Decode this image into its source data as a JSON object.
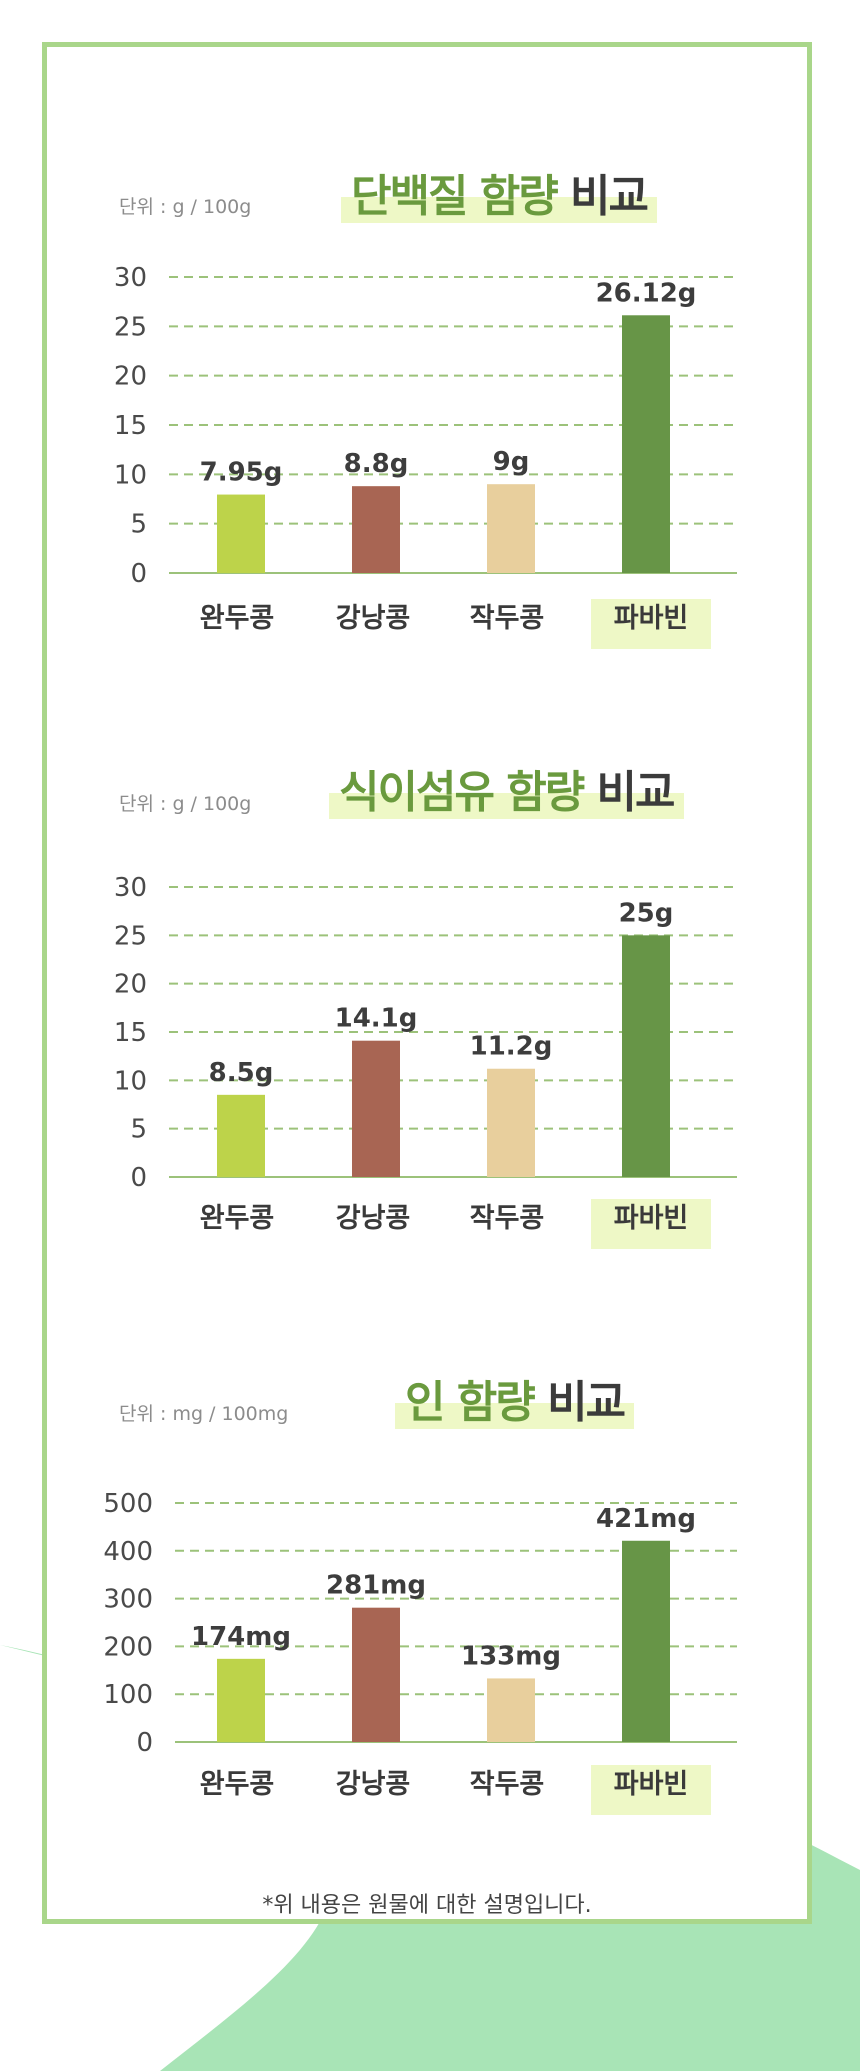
{
  "colors": {
    "border": "#a9d68a",
    "wave": "#a8e4b6",
    "title_green": "#6a9a3e",
    "title_dark": "#3b3b3b",
    "highlight": "#eef8c6",
    "grid": "#9cc27a",
    "bar_colors": [
      "#bdd34a",
      "#a86553",
      "#e8cf9d",
      "#679547"
    ]
  },
  "sections": [
    {
      "unit": "단위 : g / 100g",
      "title_green": "단백질 함량",
      "title_dark": "비교"
    },
    {
      "unit": "단위 : g / 100g",
      "title_green": "식이섬유 함량",
      "title_dark": "비교"
    },
    {
      "unit": "단위 : mg / 100mg",
      "title_green": "인 함량",
      "title_dark": "비교"
    }
  ],
  "chart_data": [
    {
      "type": "bar",
      "categories": [
        "완두콩",
        "강낭콩",
        "작두콩",
        "파바빈"
      ],
      "values": [
        7.95,
        8.8,
        9,
        26.12
      ],
      "value_labels": [
        "7.95g",
        "8.8g",
        "9g",
        "26.12g"
      ],
      "yticks": [
        "0",
        "5",
        "10",
        "15",
        "20",
        "25",
        "30"
      ],
      "ylim": [
        0,
        30
      ],
      "grid": true,
      "highlight_category": "파바빈"
    },
    {
      "type": "bar",
      "categories": [
        "완두콩",
        "강낭콩",
        "작두콩",
        "파바빈"
      ],
      "values": [
        8.5,
        14.1,
        11.2,
        25
      ],
      "value_labels": [
        "8.5g",
        "14.1g",
        "11.2g",
        "25g"
      ],
      "yticks": [
        "0",
        "5",
        "10",
        "15",
        "20",
        "25",
        "30"
      ],
      "ylim": [
        0,
        30
      ],
      "grid": true,
      "highlight_category": "파바빈"
    },
    {
      "type": "bar",
      "categories": [
        "완두콩",
        "강낭콩",
        "작두콩",
        "파바빈"
      ],
      "values": [
        174,
        281,
        133,
        421
      ],
      "value_labels": [
        "174mg",
        "281mg",
        "133mg",
        "421mg"
      ],
      "yticks": [
        "0",
        "100",
        "200",
        "300",
        "400",
        "500"
      ],
      "ylim": [
        0,
        500
      ],
      "grid": true,
      "highlight_category": "파바빈"
    }
  ],
  "footnote": "*위 내용은 원물에 대한 설명입니다."
}
